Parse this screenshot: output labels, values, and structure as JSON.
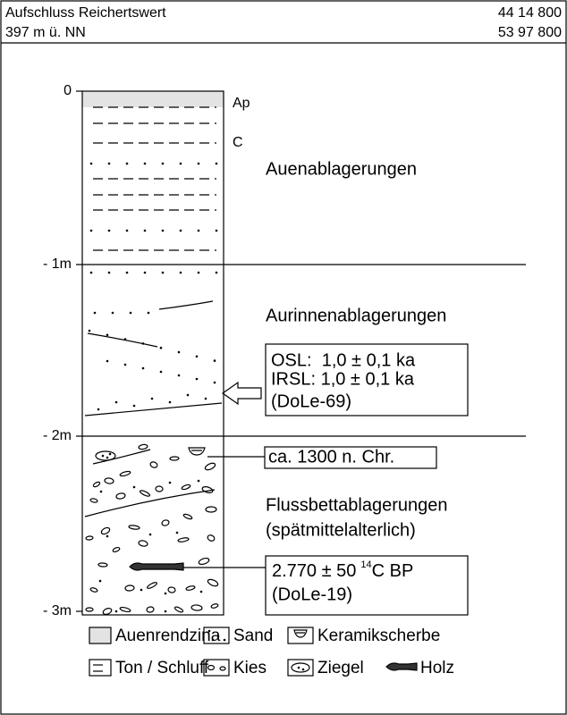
{
  "header": {
    "title": "Aufschluss Reichertswert",
    "elevation": "397 m ü. NN",
    "easting": "44 14 800",
    "northing": "53 97 800"
  },
  "depth_labels": [
    "0",
    "- 1m",
    "- 2m",
    "- 3m"
  ],
  "layer_labels": [
    "Ap",
    "C"
  ],
  "units": [
    "Auenablagerungen",
    "Aurinnenablagerungen",
    "Flussbettablagerungen",
    "(spätmittelalterlich)"
  ],
  "datings": [
    {
      "lines": [
        "OSL:  1,0 ± 0,1 ka",
        "IRSL: 1,0 ± 0,1 ka",
        "(DoLe-69)"
      ]
    },
    {
      "lines": [
        "ca. 1300 n. Chr."
      ]
    },
    {
      "value": "2.770 ± 50",
      "isotope": "14",
      "unit": "C BP",
      "lab": "(DoLe-19)"
    }
  ],
  "legend": [
    "Auenrendzina",
    "Sand",
    "Keramikscherbe",
    "Ton / Schluff",
    "Kies",
    "Ziegel",
    "Holz"
  ]
}
